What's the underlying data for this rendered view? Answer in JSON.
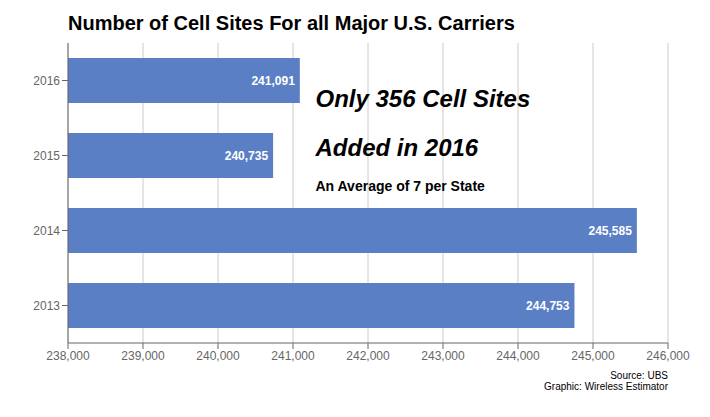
{
  "chart_data": {
    "type": "bar",
    "orientation": "horizontal",
    "title": "Number of Cell Sites For all Major U.S. Carriers",
    "categories": [
      "2016",
      "2015",
      "2014",
      "2013"
    ],
    "values": [
      241091,
      240735,
      245585,
      244753
    ],
    "value_labels": [
      "241,091",
      "240,735",
      "245,585",
      "244,753"
    ],
    "data_labels": true,
    "color": "#5b7fc4",
    "xlim": [
      238000,
      246000
    ],
    "xticks": [
      {
        "value": 238000,
        "label": "238,000"
      },
      {
        "value": 239000,
        "label": "239,000"
      },
      {
        "value": 240000,
        "label": "240,000"
      },
      {
        "value": 241000,
        "label": "241,000"
      },
      {
        "value": 242000,
        "label": "242,000"
      },
      {
        "value": 243000,
        "label": "243,000"
      },
      {
        "value": 244000,
        "label": "244,000"
      },
      {
        "value": 245000,
        "label": "245,000"
      },
      {
        "value": 246000,
        "label": "246,000"
      }
    ],
    "grid": true,
    "annotations": [
      "Only 356 Cell Sites",
      "Added in 2016",
      "An Average of 7 per State",
      "Source: UBS\nGraphic: Wireless Estimator"
    ]
  }
}
